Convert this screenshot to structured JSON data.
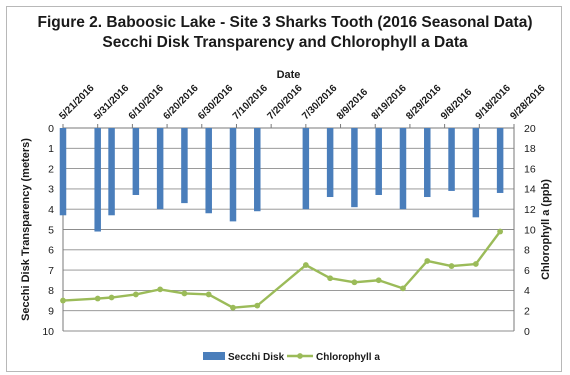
{
  "chart_data": {
    "type": "bar+line",
    "title_line1": "Figure 2. Baboosic Lake - Site 3 Sharks Tooth (2016 Seasonal Data)",
    "title_line2": "Secchi Disk Transparency and Chlorophyll a  Data",
    "xlabel": "Date",
    "ylabel_left": "Secchi Disk Transparency (meters)",
    "ylabel_right": "Chlorophyll a (ppb)",
    "ylim_left": [
      0,
      10
    ],
    "ylim_right": [
      0,
      20
    ],
    "left_axis_inverted": true,
    "x_axis_position": "top",
    "grid": true,
    "legend_position": "bottom",
    "date_ticks": [
      "5/21/2016",
      "5/31/2016",
      "6/10/2016",
      "6/20/2016",
      "6/30/2016",
      "7/10/2016",
      "7/20/2016",
      "7/30/2016",
      "8/9/2016",
      "8/19/2016",
      "8/29/2016",
      "9/8/2016",
      "9/18/2016",
      "9/28/2016"
    ],
    "left_ticks": [
      0,
      1,
      2,
      3,
      4,
      5,
      6,
      7,
      8,
      9,
      10
    ],
    "right_ticks": [
      0,
      2,
      4,
      6,
      8,
      10,
      12,
      14,
      16,
      18,
      20
    ],
    "series": [
      {
        "name": "Secchi Disk",
        "axis": "left",
        "kind": "bar",
        "color": "#4a7ebb",
        "points": [
          {
            "date": "5/21/2016",
            "value": 4.3
          },
          {
            "date": "5/31/2016",
            "value": 5.1
          },
          {
            "date": "6/4/2016",
            "value": 4.3
          },
          {
            "date": "6/11/2016",
            "value": 3.3
          },
          {
            "date": "6/18/2016",
            "value": 4.0
          },
          {
            "date": "6/25/2016",
            "value": 3.7
          },
          {
            "date": "7/2/2016",
            "value": 4.2
          },
          {
            "date": "7/9/2016",
            "value": 4.6
          },
          {
            "date": "7/16/2016",
            "value": 4.1
          },
          {
            "date": "7/30/2016",
            "value": 4.0
          },
          {
            "date": "8/6/2016",
            "value": 3.4
          },
          {
            "date": "8/13/2016",
            "value": 3.9
          },
          {
            "date": "8/20/2016",
            "value": 3.3
          },
          {
            "date": "8/27/2016",
            "value": 4.0
          },
          {
            "date": "9/3/2016",
            "value": 3.4
          },
          {
            "date": "9/10/2016",
            "value": 3.1
          },
          {
            "date": "9/17/2016",
            "value": 4.4
          },
          {
            "date": "9/24/2016",
            "value": 3.2
          }
        ]
      },
      {
        "name": "Chlorophyll a",
        "axis": "right",
        "kind": "line",
        "color": "#9bbb59",
        "points": [
          {
            "date": "5/21/2016",
            "value": 3.0
          },
          {
            "date": "5/31/2016",
            "value": 3.2
          },
          {
            "date": "6/4/2016",
            "value": 3.3
          },
          {
            "date": "6/11/2016",
            "value": 3.6
          },
          {
            "date": "6/18/2016",
            "value": 4.1
          },
          {
            "date": "6/25/2016",
            "value": 3.7
          },
          {
            "date": "7/2/2016",
            "value": 3.6
          },
          {
            "date": "7/9/2016",
            "value": 2.3
          },
          {
            "date": "7/16/2016",
            "value": 2.5
          },
          {
            "date": "7/30/2016",
            "value": 6.5
          },
          {
            "date": "8/6/2016",
            "value": 5.2
          },
          {
            "date": "8/13/2016",
            "value": 4.8
          },
          {
            "date": "8/20/2016",
            "value": 5.0
          },
          {
            "date": "8/27/2016",
            "value": 4.2
          },
          {
            "date": "9/3/2016",
            "value": 6.9
          },
          {
            "date": "9/10/2016",
            "value": 6.4
          },
          {
            "date": "9/17/2016",
            "value": 6.6
          },
          {
            "date": "9/24/2016",
            "value": 9.8
          }
        ]
      }
    ]
  }
}
